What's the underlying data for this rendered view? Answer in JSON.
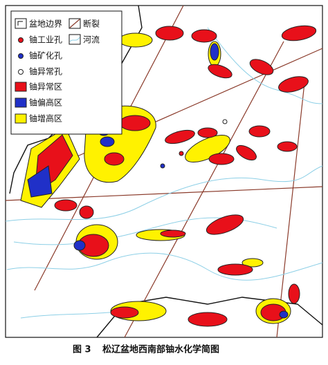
{
  "legend": {
    "items": [
      {
        "label": "盆地边界"
      },
      {
        "label": "断裂"
      },
      {
        "label": "铀工业孔"
      },
      {
        "label": "河流"
      },
      {
        "label": "铀矿化孔"
      },
      {
        "label": "铀异常孔"
      },
      {
        "label": "铀异常区"
      },
      {
        "label": "铀偏高区"
      },
      {
        "label": "铀增高区"
      }
    ]
  },
  "caption": {
    "figure": "图 3",
    "title": "松辽盆地西南部铀水化学简图"
  }
}
